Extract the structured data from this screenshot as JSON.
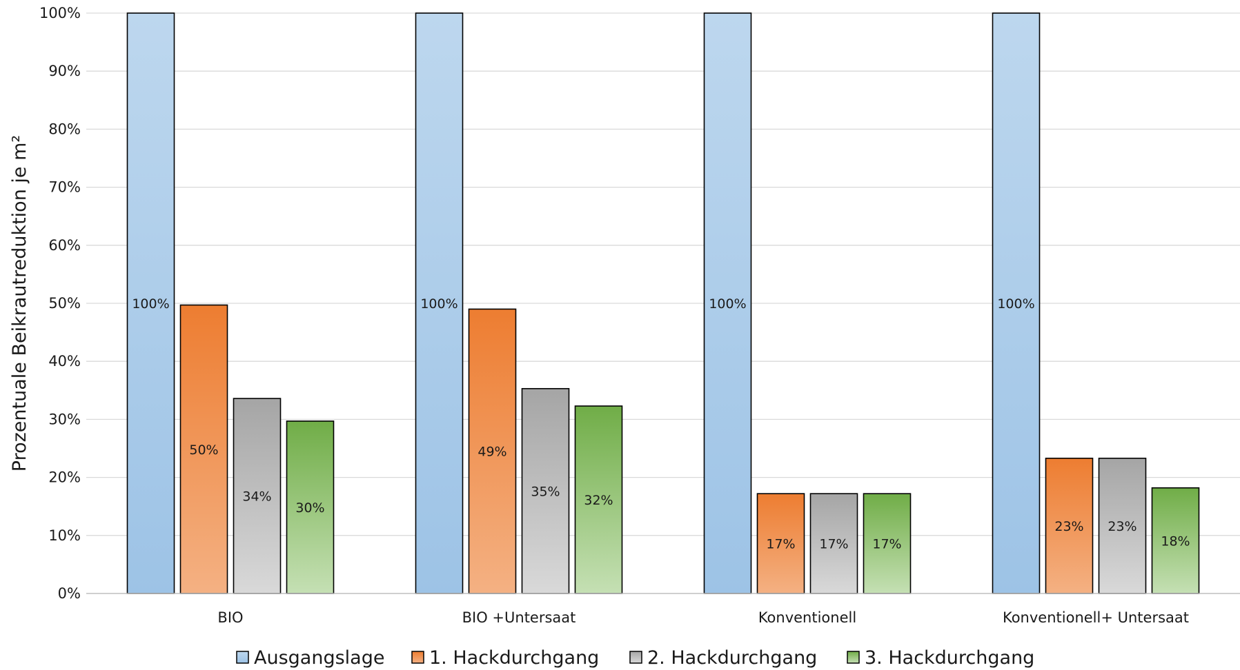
{
  "chart_data": {
    "type": "bar",
    "ylabel": "Prozentuale Beikrautreduktion je m²",
    "xlabel": "",
    "ylim": [
      0,
      100
    ],
    "y_ticks": [
      "0%",
      "10%",
      "20%",
      "30%",
      "40%",
      "50%",
      "60%",
      "70%",
      "80%",
      "90%",
      "100%"
    ],
    "grid": true,
    "legend_position": "bottom",
    "categories": [
      "BIO",
      "BIO +Untersaat",
      "Konventionell",
      "Konventionell+ Untersaat"
    ],
    "series": [
      {
        "name": "Ausgangslage",
        "values": [
          100,
          100,
          100,
          100
        ],
        "labels": [
          "100%",
          "100%",
          "100%",
          "100%"
        ],
        "color_top": "#bdd7ee",
        "color_bottom": "#9dc3e6"
      },
      {
        "name": "1. Hackdurchgang",
        "values": [
          49.7,
          49,
          17.2,
          23.3
        ],
        "labels": [
          "50%",
          "49%",
          "17%",
          "23%"
        ],
        "color_top": "#ed7d31",
        "color_bottom": "#f4b183"
      },
      {
        "name": "2. Hackdurchgang",
        "values": [
          33.6,
          35.3,
          17.2,
          23.3
        ],
        "labels": [
          "34%",
          "35%",
          "17%",
          "23%"
        ],
        "color_top": "#a5a5a5",
        "color_bottom": "#d9d9d9"
      },
      {
        "name": "3. Hackdurchgang",
        "values": [
          29.7,
          32.3,
          17.2,
          18.2
        ],
        "labels": [
          "30%",
          "32%",
          "17%",
          "18%"
        ],
        "color_top": "#70ad47",
        "color_bottom": "#c5e0b4"
      }
    ]
  }
}
